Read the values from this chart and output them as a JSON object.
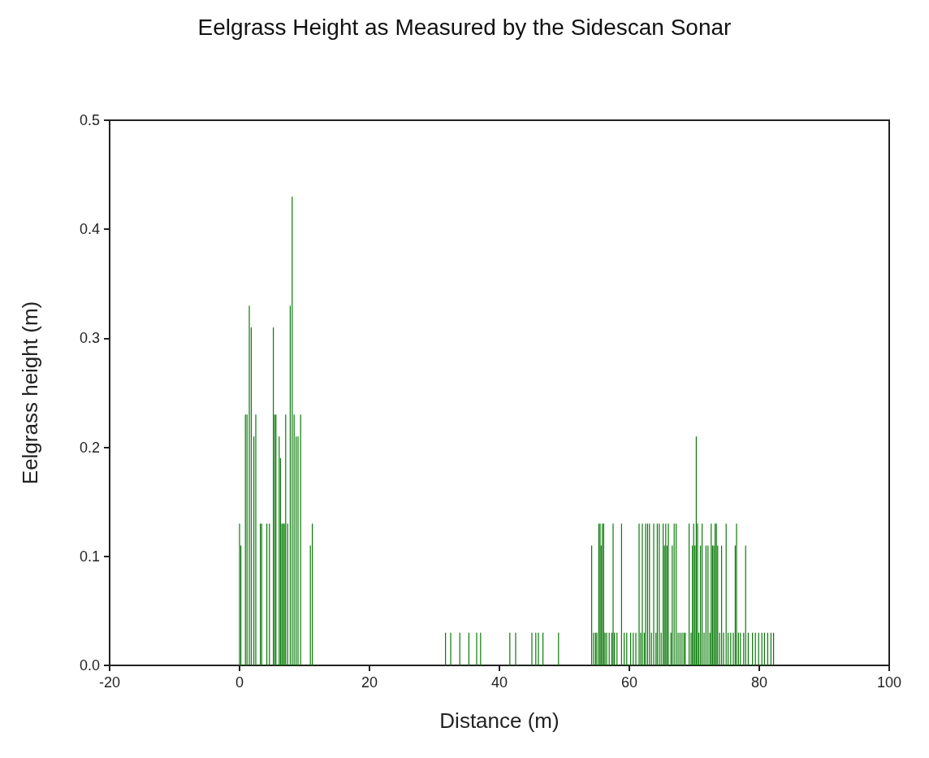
{
  "chart_data": {
    "type": "bar",
    "title": "Eelgrass Height as Measured by the Sidescan Sonar",
    "xlabel": "Distance (m)",
    "ylabel": "Eelgrass height (m)",
    "xlim": [
      -20,
      100
    ],
    "xticks": [
      -20,
      0,
      20,
      40,
      60,
      80,
      100
    ],
    "ylim": [
      0,
      0.5
    ],
    "yticks": [
      {
        "value": 0,
        "label": "0.0"
      },
      0.1,
      0.2,
      0.3,
      0.4,
      0.5
    ],
    "grid": false,
    "series": [
      {
        "color": "#0a7a0a",
        "x": [
          0.0,
          0.2,
          0.9,
          1.15,
          1.5,
          1.8,
          2.2,
          2.5,
          3.2,
          3.4,
          4.2,
          4.6,
          5.2,
          5.4,
          5.6,
          6.1,
          6.3,
          6.5,
          6.7,
          6.9,
          7.1,
          7.4,
          7.8,
          8.1,
          8.4,
          8.7,
          9.0,
          9.4,
          10.9,
          11.2,
          31.7,
          32.5,
          33.9,
          35.3,
          36.5,
          37.1,
          41.6,
          42.5,
          45.0,
          45.6,
          46.0,
          46.7,
          49.1,
          54.2,
          54.5,
          54.8,
          55.0,
          55.3,
          55.5,
          55.65,
          55.85,
          56.05,
          56.25,
          56.5,
          56.9,
          57.3,
          57.5,
          57.7,
          58.1,
          58.8,
          59.2,
          59.6,
          60.2,
          60.6,
          61.0,
          61.5,
          61.75,
          62.0,
          62.3,
          62.5,
          62.8,
          63.1,
          63.4,
          63.75,
          64.1,
          64.3,
          64.6,
          64.9,
          65.2,
          65.4,
          65.6,
          65.8,
          66.0,
          66.4,
          66.6,
          66.9,
          67.2,
          67.5,
          67.8,
          68.1,
          68.4,
          68.6,
          69.2,
          69.5,
          69.7,
          69.9,
          70.1,
          70.3,
          70.5,
          70.7,
          70.95,
          71.2,
          71.5,
          71.8,
          72.1,
          72.4,
          72.6,
          72.8,
          73.0,
          73.2,
          73.4,
          73.6,
          73.9,
          74.2,
          74.5,
          74.9,
          75.2,
          75.6,
          76.0,
          76.3,
          76.5,
          76.8,
          77.1,
          77.6,
          77.9,
          78.3,
          78.95,
          79.4,
          79.9,
          80.4,
          80.8,
          81.3,
          81.8,
          82.2
        ],
        "values": [
          0.13,
          0.11,
          0.23,
          0.23,
          0.33,
          0.31,
          0.21,
          0.23,
          0.13,
          0.13,
          0.13,
          0.13,
          0.31,
          0.23,
          0.23,
          0.21,
          0.19,
          0.13,
          0.13,
          0.13,
          0.23,
          0.13,
          0.33,
          0.43,
          0.23,
          0.21,
          0.21,
          0.23,
          0.11,
          0.13,
          0.03,
          0.03,
          0.03,
          0.03,
          0.03,
          0.03,
          0.03,
          0.03,
          0.03,
          0.03,
          0.03,
          0.03,
          0.03,
          0.11,
          0.03,
          0.03,
          0.03,
          0.13,
          0.13,
          0.11,
          0.13,
          0.13,
          0.03,
          0.03,
          0.03,
          0.03,
          0.13,
          0.03,
          0.03,
          0.13,
          0.03,
          0.03,
          0.03,
          0.03,
          0.03,
          0.13,
          0.03,
          0.13,
          0.03,
          0.13,
          0.13,
          0.13,
          0.03,
          0.13,
          0.03,
          0.13,
          0.13,
          0.03,
          0.13,
          0.11,
          0.13,
          0.11,
          0.13,
          0.03,
          0.11,
          0.13,
          0.13,
          0.03,
          0.03,
          0.03,
          0.03,
          0.03,
          0.13,
          0.03,
          0.11,
          0.13,
          0.11,
          0.21,
          0.13,
          0.03,
          0.11,
          0.13,
          0.03,
          0.11,
          0.11,
          0.03,
          0.13,
          0.11,
          0.11,
          0.13,
          0.13,
          0.11,
          0.03,
          0.11,
          0.03,
          0.13,
          0.03,
          0.03,
          0.03,
          0.11,
          0.13,
          0.03,
          0.03,
          0.03,
          0.11,
          0.03,
          0.03,
          0.03,
          0.03,
          0.03,
          0.03,
          0.03,
          0.03,
          0.03
        ]
      }
    ]
  }
}
